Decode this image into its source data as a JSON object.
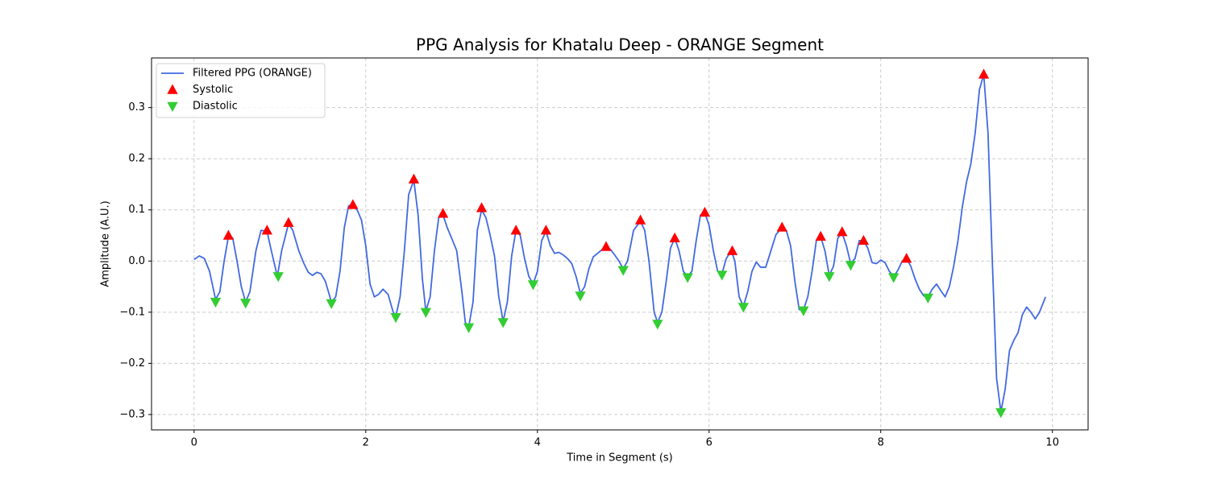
{
  "chart_data": {
    "type": "line",
    "title": "PPG Analysis for Khatalu Deep - ORANGE Segment",
    "x_label": "Time in Segment (s)",
    "y_label": "Amplitude (A.U.)",
    "xlim": [
      -0.496,
      10.416
    ],
    "ylim": [
      -0.33,
      0.397
    ],
    "xticks": [
      0,
      2,
      4,
      6,
      8,
      10
    ],
    "yticks": [
      {
        "value": -0.3,
        "label": "−0.3"
      },
      {
        "value": -0.2,
        "label": "−0.2"
      },
      {
        "value": -0.1,
        "label": "−0.1"
      },
      {
        "value": 0,
        "label": "0.0"
      },
      0.1,
      0.2,
      0.3
    ],
    "grid": true,
    "legend": "upper left",
    "series": [
      {
        "name": "Filtered PPG (ORANGE)",
        "kind": "line",
        "color": "#4169e1",
        "x": [
          0,
          0.06,
          0.12,
          0.18,
          0.25,
          0.3,
          0.35,
          0.4,
          0.45,
          0.5,
          0.55,
          0.6,
          0.65,
          0.72,
          0.78,
          0.85,
          0.9,
          0.97,
          1.02,
          1.1,
          1.15,
          1.22,
          1.28,
          1.33,
          1.38,
          1.43,
          1.48,
          1.53,
          1.6,
          1.65,
          1.7,
          1.75,
          1.8,
          1.85,
          1.9,
          1.95,
          2.0,
          2.05,
          2.1,
          2.15,
          2.2,
          2.26,
          2.32,
          2.35,
          2.4,
          2.45,
          2.5,
          2.56,
          2.61,
          2.66,
          2.7,
          2.75,
          2.8,
          2.85,
          2.9,
          2.95,
          3.0,
          3.06,
          3.12,
          3.16,
          3.2,
          3.25,
          3.3,
          3.35,
          3.4,
          3.45,
          3.5,
          3.55,
          3.6,
          3.65,
          3.7,
          3.75,
          3.8,
          3.85,
          3.9,
          3.95,
          4.0,
          4.05,
          4.1,
          4.15,
          4.2,
          4.25,
          4.3,
          4.35,
          4.4,
          4.45,
          4.5,
          4.55,
          4.6,
          4.65,
          4.7,
          4.75,
          4.8,
          4.85,
          4.9,
          4.95,
          5.0,
          5.05,
          5.12,
          5.2,
          5.25,
          5.3,
          5.36,
          5.4,
          5.45,
          5.5,
          5.55,
          5.6,
          5.65,
          5.7,
          5.75,
          5.8,
          5.85,
          5.9,
          5.95,
          6.0,
          6.05,
          6.1,
          6.15,
          6.2,
          6.26,
          6.3,
          6.35,
          6.4,
          6.45,
          6.5,
          6.55,
          6.6,
          6.66,
          6.72,
          6.78,
          6.85,
          6.9,
          6.95,
          7.0,
          7.05,
          7.1,
          7.15,
          7.2,
          7.25,
          7.3,
          7.35,
          7.4,
          7.45,
          7.5,
          7.55,
          7.6,
          7.65,
          7.7,
          7.75,
          7.8,
          7.85,
          7.9,
          7.95,
          8.0,
          8.05,
          8.1,
          8.15,
          8.2,
          8.25,
          8.3,
          8.35,
          8.4,
          8.45,
          8.5,
          8.55,
          8.6,
          8.65,
          8.7,
          8.75,
          8.8,
          8.85,
          8.9,
          8.95,
          9.0,
          9.05,
          9.1,
          9.15,
          9.2,
          9.25,
          9.3,
          9.35,
          9.4,
          9.45,
          9.5,
          9.55,
          9.6,
          9.65,
          9.7,
          9.75,
          9.8,
          9.85,
          9.92
        ],
        "values": [
          0.003,
          0.01,
          0.005,
          -0.02,
          -0.075,
          -0.06,
          0.0,
          0.048,
          0.045,
          0.0,
          -0.05,
          -0.08,
          -0.06,
          0.02,
          0.06,
          0.058,
          0.02,
          -0.03,
          0.02,
          0.073,
          0.06,
          0.02,
          -0.005,
          -0.022,
          -0.028,
          -0.022,
          -0.025,
          -0.04,
          -0.08,
          -0.07,
          -0.02,
          0.065,
          0.108,
          0.11,
          0.1,
          0.08,
          0.03,
          -0.045,
          -0.07,
          -0.065,
          -0.055,
          -0.065,
          -0.1,
          -0.108,
          -0.07,
          0.02,
          0.13,
          0.158,
          0.09,
          -0.035,
          -0.098,
          -0.07,
          0.02,
          0.085,
          0.09,
          0.065,
          0.045,
          0.02,
          -0.06,
          -0.12,
          -0.128,
          -0.08,
          0.06,
          0.1,
          0.085,
          0.05,
          0.01,
          -0.07,
          -0.118,
          -0.08,
          0.01,
          0.06,
          0.05,
          0.005,
          -0.03,
          -0.045,
          -0.02,
          0.04,
          0.058,
          0.03,
          0.015,
          0.017,
          0.012,
          0.005,
          -0.005,
          -0.03,
          -0.063,
          -0.05,
          -0.015,
          0.008,
          0.015,
          0.022,
          0.027,
          0.023,
          0.012,
          0.0,
          -0.015,
          0.0,
          0.06,
          0.078,
          0.06,
          0.0,
          -0.1,
          -0.12,
          -0.1,
          -0.04,
          0.025,
          0.045,
          0.02,
          -0.02,
          -0.03,
          -0.02,
          0.04,
          0.09,
          0.095,
          0.07,
          0.02,
          -0.02,
          -0.025,
          0.005,
          0.02,
          0.0,
          -0.07,
          -0.088,
          -0.06,
          -0.02,
          -0.002,
          -0.012,
          -0.012,
          0.02,
          0.052,
          0.065,
          0.06,
          0.03,
          -0.04,
          -0.095,
          -0.095,
          -0.07,
          -0.02,
          0.04,
          0.048,
          0.02,
          -0.028,
          -0.01,
          0.045,
          0.055,
          0.03,
          -0.005,
          0.005,
          0.04,
          0.04,
          0.025,
          -0.003,
          -0.005,
          0.002,
          -0.003,
          -0.02,
          -0.03,
          -0.018,
          0.0,
          0.005,
          -0.01,
          -0.035,
          -0.055,
          -0.068,
          -0.07,
          -0.055,
          -0.045,
          -0.058,
          -0.07,
          -0.05,
          -0.01,
          0.04,
          0.105,
          0.155,
          0.19,
          0.25,
          0.335,
          0.365,
          0.25,
          0.0,
          -0.23,
          -0.295,
          -0.25,
          -0.175,
          -0.155,
          -0.14,
          -0.105,
          -0.09,
          -0.1,
          -0.113,
          -0.1,
          -0.07
        ]
      },
      {
        "name": "Systolic",
        "kind": "marker-up",
        "color": "#ff0000",
        "x": [
          0.4,
          0.85,
          1.1,
          1.85,
          2.56,
          2.9,
          3.35,
          3.75,
          4.1,
          4.8,
          5.2,
          5.6,
          5.95,
          6.27,
          6.85,
          7.3,
          7.55,
          7.8,
          8.3,
          9.2
        ],
        "values": [
          0.05,
          0.06,
          0.075,
          0.11,
          0.16,
          0.093,
          0.104,
          0.06,
          0.06,
          0.028,
          0.08,
          0.045,
          0.095,
          0.02,
          0.066,
          0.048,
          0.057,
          0.04,
          0.005,
          0.365
        ]
      },
      {
        "name": "Diastolic",
        "kind": "marker-down",
        "color": "#32cd32",
        "x": [
          0.25,
          0.6,
          0.98,
          1.6,
          2.35,
          2.7,
          3.2,
          3.6,
          3.95,
          4.5,
          5.0,
          5.4,
          5.75,
          6.15,
          6.4,
          7.1,
          7.4,
          7.65,
          8.15,
          8.55,
          9.4
        ],
        "values": [
          -0.08,
          -0.082,
          -0.03,
          -0.083,
          -0.11,
          -0.1,
          -0.13,
          -0.12,
          -0.046,
          -0.068,
          -0.018,
          -0.123,
          -0.032,
          -0.027,
          -0.09,
          -0.097,
          -0.03,
          -0.008,
          -0.032,
          -0.072,
          -0.296
        ]
      }
    ]
  }
}
